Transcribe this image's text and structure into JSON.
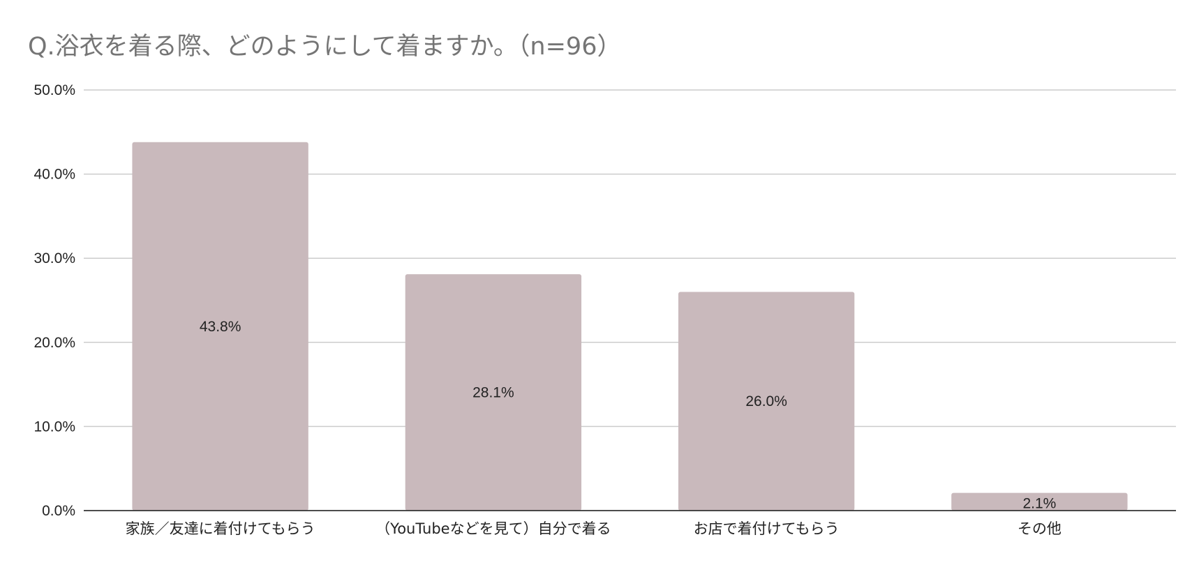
{
  "chart_data": {
    "type": "bar",
    "title": "Q.浴衣を着る際、どのようにして着ますか。（n=96）",
    "categories": [
      "家族／友達に着付けてもらう",
      "（YouTubeなどを見て）自分で着る",
      "お店で着付けてもらう",
      "その他"
    ],
    "values": [
      43.8,
      28.1,
      26.0,
      2.1
    ],
    "data_labels": [
      "43.8%",
      "28.1%",
      "26.0%",
      "2.1%"
    ],
    "yticks": [
      "0.0%",
      "10.0%",
      "20.0%",
      "30.0%",
      "40.0%",
      "50.0%"
    ],
    "ylim": [
      0,
      50
    ],
    "grid": true,
    "legend": "none",
    "colors": {
      "bar": "#c9b9bc",
      "grid": "#cccccc",
      "axis": "#333333",
      "title": "#757575"
    }
  }
}
